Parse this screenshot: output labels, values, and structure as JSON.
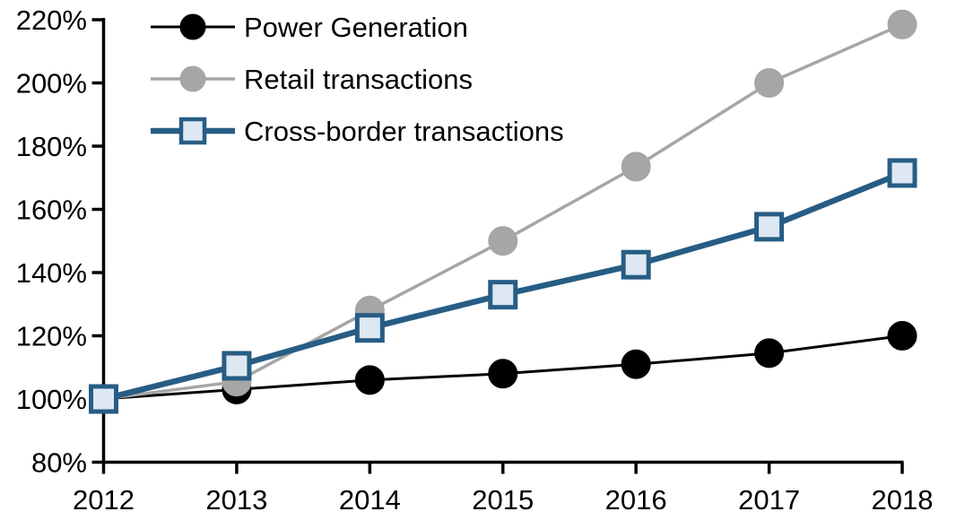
{
  "chart_data": {
    "type": "line",
    "title": "",
    "xlabel": "",
    "ylabel": "",
    "x": [
      2012,
      2013,
      2014,
      2015,
      2016,
      2017,
      2018
    ],
    "x_tick_labels": [
      "2012",
      "2013",
      "2014",
      "2015",
      "2016",
      "2017",
      "2018"
    ],
    "y_ticks": [
      {
        "value": 220,
        "label": "220%"
      },
      {
        "value": 200,
        "label": "200%"
      },
      {
        "value": 180,
        "label": "180%"
      },
      {
        "value": 160,
        "label": "160%"
      },
      {
        "value": 140,
        "label": "140%"
      },
      {
        "value": 120,
        "label": "120%"
      },
      {
        "value": 100,
        "label": "100%"
      },
      {
        "value": 80,
        "label": "80%"
      }
    ],
    "ylim": [
      80,
      220
    ],
    "xlim": [
      2012,
      2018
    ],
    "grid": false,
    "legend_position": "top-left",
    "axis_color": "#000000",
    "series": [
      {
        "name": "Power Generation",
        "color": "#000000",
        "line_width": 3,
        "marker": "circle",
        "marker_fill": "#000000",
        "marker_stroke": "#000000",
        "values": [
          100,
          103,
          106,
          108,
          111,
          114.5,
          120
        ]
      },
      {
        "name": "Retail transactions",
        "color": "#a6a6a6",
        "line_width": 3.5,
        "marker": "circle",
        "marker_fill": "#a6a6a6",
        "marker_stroke": "#a6a6a6",
        "values": [
          100,
          105.5,
          128,
          150,
          173.5,
          200,
          218.5
        ]
      },
      {
        "name": "Cross-border transactions",
        "color": "#275d85",
        "line_width": 6.5,
        "marker": "square",
        "marker_fill": "#dde8f2",
        "marker_stroke": "#275d85",
        "values": [
          100,
          110.5,
          122.5,
          133,
          142.5,
          154.5,
          171.5
        ]
      }
    ]
  }
}
